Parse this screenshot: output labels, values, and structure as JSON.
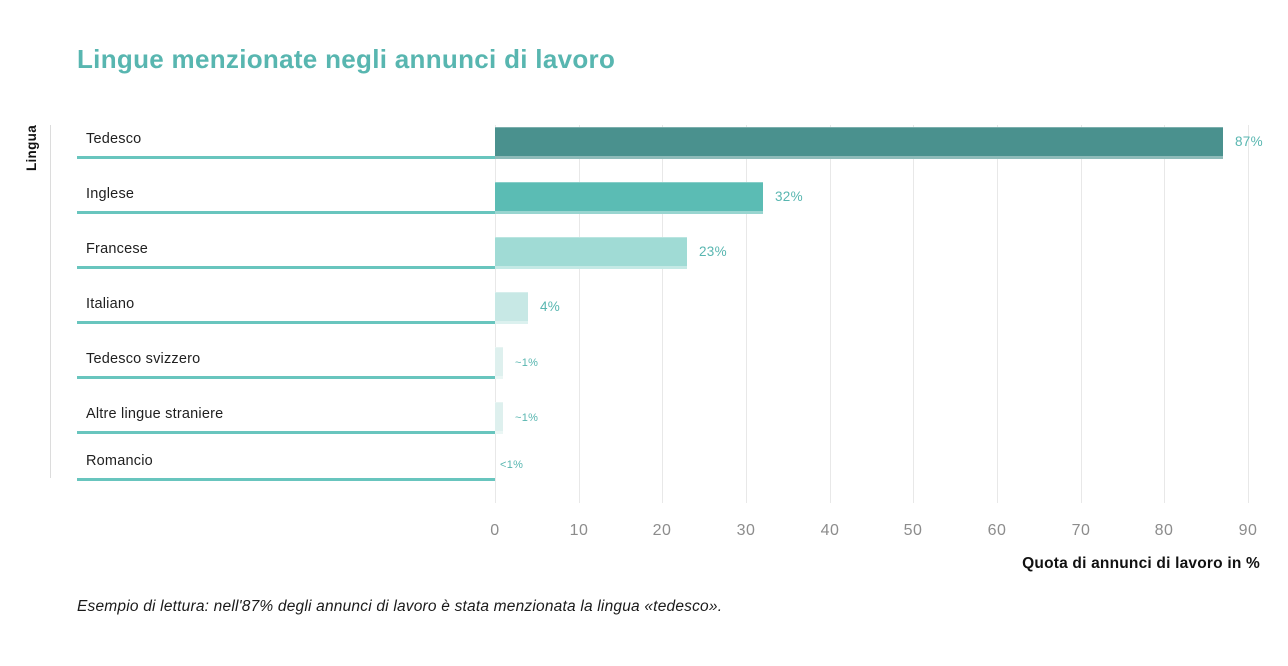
{
  "title": "Lingue menzionate negli annunci di lavoro",
  "axes": {
    "y_title": "Lingua",
    "x_title": "Quota di annunci di lavoro in %"
  },
  "footnote": "Esempio di lettura: nell'87% degli annunci di lavoro è stata menzionata la lingua «tedesco».",
  "colors": {
    "title": "#58b6b0",
    "value_label": "#58b6b0",
    "baseline": "#68c5be",
    "gridline": "#e8e8e8",
    "axis_line": "#dcdcdc",
    "tick_label": "#8c8c8c",
    "category_label": "#1f1f1f",
    "bars": [
      "#4a918e",
      "#5bbcb4",
      "#a0dbd5",
      "#c7e8e5",
      "#def0ee",
      "#def0ee",
      "#def0ee"
    ]
  },
  "chart_data": {
    "type": "bar",
    "orientation": "horizontal",
    "title": "Lingue menzionate negli annunci di lavoro",
    "xlabel": "Quota di annunci di lavoro in %",
    "ylabel": "Lingua",
    "categories": [
      "Tedesco",
      "Inglese",
      "Francese",
      "Italiano",
      "Tedesco svizzero",
      "Altre lingue straniere",
      "Romancio"
    ],
    "values": [
      87,
      32,
      23,
      4,
      1,
      1,
      0.5
    ],
    "value_labels": [
      "87%",
      "32%",
      "23%",
      "4%",
      "~1%",
      "~1%",
      "<1%"
    ],
    "xlim": [
      0,
      90
    ],
    "x_ticks": [
      0,
      10,
      20,
      30,
      40,
      50,
      60,
      70,
      80,
      90
    ],
    "grid": "vertical-gridlines-every-10",
    "legend": "none"
  }
}
